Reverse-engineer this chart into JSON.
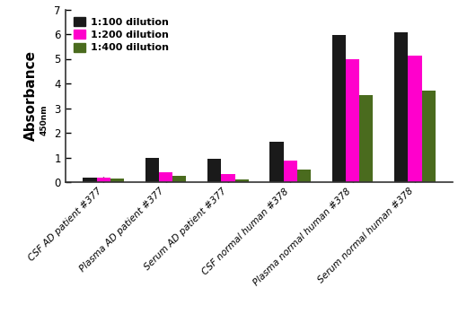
{
  "categories": [
    "CSF AD patient #377",
    "Plasma AD patient #377",
    "Serum AD patient #377",
    "CSF normal human #378",
    "Plasma normal human #378",
    "Serum normal human #378"
  ],
  "series": [
    {
      "label": "1:100 dilution",
      "color": "#1a1a1a",
      "values": [
        0.2,
        0.97,
        0.93,
        1.62,
        5.97,
        6.07
      ]
    },
    {
      "label": "1:200 dilution",
      "color": "#ff00cc",
      "values": [
        0.18,
        0.4,
        0.32,
        0.88,
        4.97,
        5.13
      ]
    },
    {
      "label": "1:400 dilution",
      "color": "#4a6b1e",
      "values": [
        0.15,
        0.25,
        0.12,
        0.52,
        3.52,
        3.72
      ]
    }
  ],
  "ylabel_main": "Absorbance",
  "ylabel_sub": "450nm",
  "ylim": [
    0,
    7.0
  ],
  "yticks": [
    0.0,
    1.0,
    2.0,
    3.0,
    4.0,
    5.0,
    6.0,
    7.0
  ],
  "background_color": "#ffffff",
  "bar_width": 0.22,
  "legend_loc": "upper left",
  "tick_label_fontsize": 7.5,
  "ytick_label_fontsize": 8.5,
  "axis_label_fontsize": 11
}
